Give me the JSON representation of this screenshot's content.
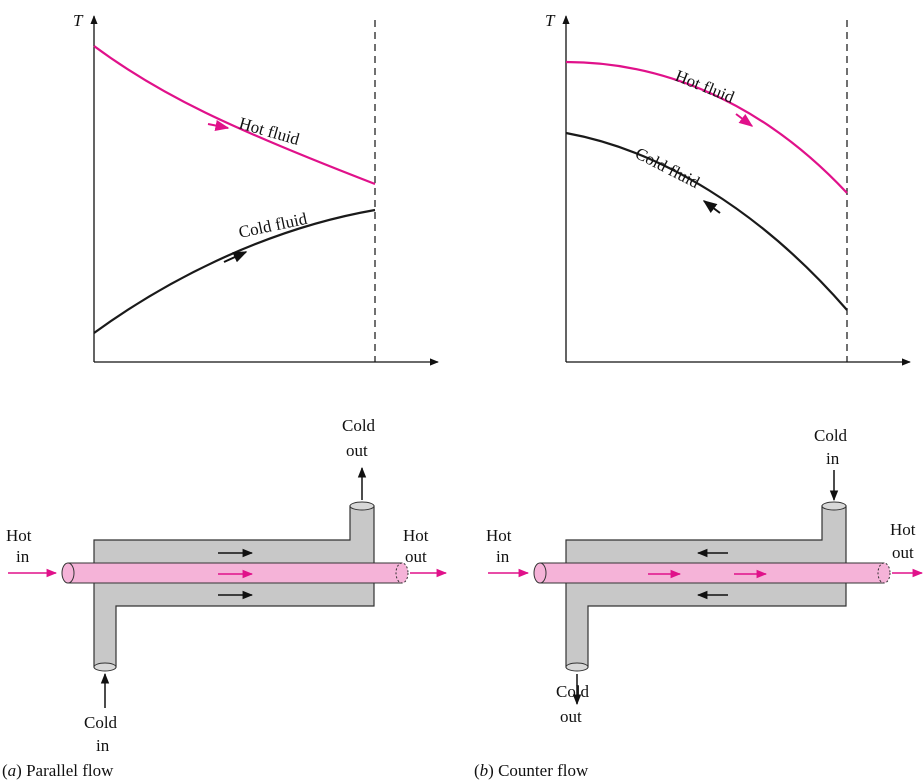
{
  "colors": {
    "hot": "#e0118a",
    "cold": "#1a1a1a",
    "shell": "#c8c8c8",
    "tube": "#f5b3d8"
  },
  "axis": {
    "y_label": "T"
  },
  "panel_a": {
    "hot_curve_label": "Hot fluid",
    "cold_curve_label": "Cold fluid",
    "hot_in": [
      "Hot",
      "in"
    ],
    "hot_out": [
      "Hot",
      "out"
    ],
    "cold_out": [
      "Cold",
      "out"
    ],
    "cold_in": [
      "Cold",
      "in"
    ],
    "caption_letter": "a",
    "caption_text": "Parallel flow"
  },
  "panel_b": {
    "hot_curve_label": "Hot fluid",
    "cold_curve_label": "Cold fluid",
    "hot_in": [
      "Hot",
      "in"
    ],
    "hot_out": [
      "Hot",
      "out"
    ],
    "cold_in": [
      "Cold",
      "in"
    ],
    "cold_out": [
      "Cold",
      "out"
    ],
    "caption_letter": "b",
    "caption_text": "Counter flow"
  }
}
